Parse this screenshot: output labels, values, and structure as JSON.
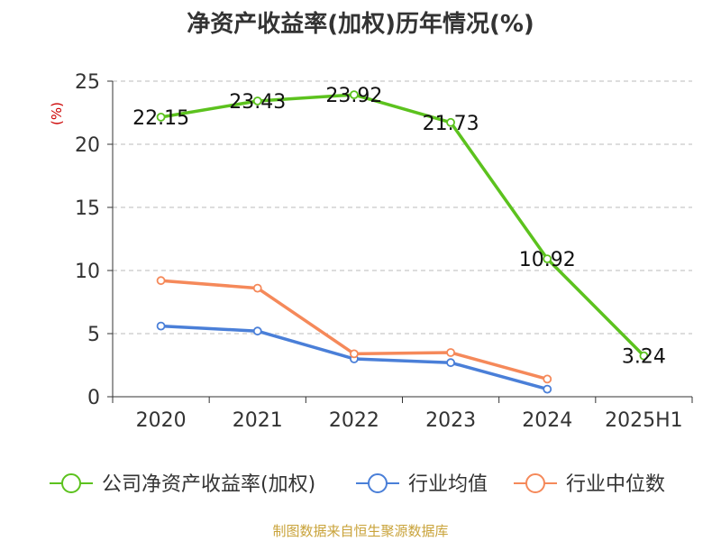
{
  "colors": {
    "company": "#5cc21e",
    "industry_avg": "#4a7fd8",
    "industry_median": "#f5895a",
    "ylabel": "#cc0000",
    "grid": "#bbbbbb",
    "axis": "#333333",
    "source": "#c9a33a"
  },
  "source_note": "制图数据来自恒生聚源数据库",
  "chart_data": {
    "type": "line",
    "title": "净资产收益率(加权)历年情况(%)",
    "xlabel": "",
    "ylabel": "(%)",
    "categories": [
      "2020",
      "2021",
      "2022",
      "2023",
      "2024",
      "2025H1"
    ],
    "ylim": [
      0,
      25
    ],
    "yticks": [
      0,
      5,
      10,
      15,
      20,
      25
    ],
    "grid": true,
    "legend_position": "bottom",
    "series": [
      {
        "name": "公司净资产收益率(加权)",
        "color_key": "company",
        "values": [
          22.15,
          23.43,
          23.92,
          21.73,
          10.92,
          3.24
        ],
        "labels": [
          "22.15",
          "23.43",
          "23.92",
          "21.73",
          "10.92",
          "3.24"
        ]
      },
      {
        "name": "行业均值",
        "color_key": "industry_avg",
        "values": [
          5.6,
          5.2,
          3.0,
          2.7,
          0.6,
          null
        ],
        "labels": []
      },
      {
        "name": "行业中位数",
        "color_key": "industry_median",
        "values": [
          9.2,
          8.6,
          3.4,
          3.5,
          1.4,
          null
        ],
        "labels": []
      }
    ]
  }
}
